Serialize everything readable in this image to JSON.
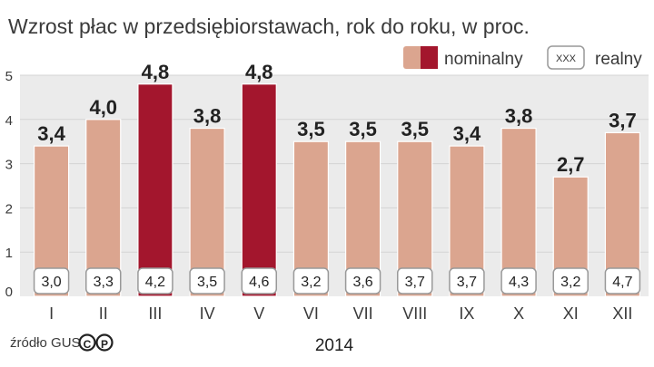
{
  "chart_data": {
    "type": "bar",
    "title": "Wzrost płac w przedsiębiorstawach, rok do roku, w proc.",
    "xlabel": "2014",
    "categories": [
      "I",
      "II",
      "III",
      "IV",
      "V",
      "VI",
      "VII",
      "VIII",
      "IX",
      "X",
      "XI",
      "XII"
    ],
    "yticks": [
      "0",
      "1",
      "2",
      "3",
      "4",
      "5"
    ],
    "ylim": [
      0,
      5
    ],
    "series": [
      {
        "name": "nominalny",
        "values": [
          3.4,
          4.0,
          4.8,
          3.8,
          4.8,
          3.5,
          3.5,
          3.5,
          3.4,
          3.8,
          2.7,
          3.7
        ],
        "labels": [
          "3,4",
          "4,0",
          "4,8",
          "3,8",
          "4,8",
          "3,5",
          "3,5",
          "3,5",
          "3,4",
          "3,8",
          "2,7",
          "3,7"
        ],
        "highlighted": [
          false,
          false,
          true,
          false,
          true,
          false,
          false,
          false,
          false,
          false,
          false,
          false
        ]
      },
      {
        "name": "realny",
        "values": [
          3.0,
          3.3,
          4.2,
          3.5,
          4.6,
          3.2,
          3.6,
          3.7,
          3.7,
          4.3,
          3.2,
          4.7
        ],
        "labels": [
          "3,0",
          "3,3",
          "4,2",
          "3,5",
          "4,6",
          "3,2",
          "3,6",
          "3,7",
          "3,7",
          "4,3",
          "3,2",
          "4,7"
        ]
      }
    ],
    "legend": {
      "placement": "top-right",
      "realny_box_text": "XXX"
    },
    "grid": true,
    "colors": {
      "bar": "#dba58f",
      "bar_highlight": "#a3162d",
      "plot_bg": "#ebebeb",
      "grid": "#d4d4d4",
      "text": "#3a3a3a",
      "label": "#222222"
    }
  },
  "source": {
    "text": "źródło GUS",
    "logo_letters": "CP"
  }
}
